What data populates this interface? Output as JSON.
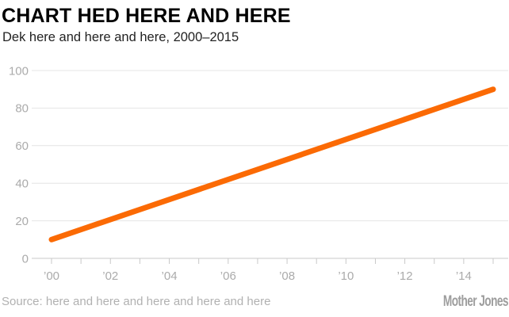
{
  "header": {
    "title": "CHART HED HERE AND HERE",
    "subtitle": "Dek here and here and here, 2000–2015"
  },
  "footer": {
    "source": "Source: here and here and here and here and here",
    "brand": "Mother Jones"
  },
  "colors": {
    "background": "#ffffff",
    "line": "#fb6a04",
    "grid": "#e4e4e4",
    "axis": "#c9c9c9",
    "tick_label": "#ababab",
    "title": "#000000",
    "subtitle": "#232323",
    "source": "#b1b1b1",
    "brand": "#9d9d9d"
  },
  "chart_data": {
    "type": "line",
    "title": "CHART HED HERE AND HERE",
    "subtitle": "Dek here and here and here, 2000–2015",
    "points": [
      [
        2000,
        10
      ],
      [
        2015,
        90
      ]
    ],
    "xlim": [
      2000,
      2015
    ],
    "ylim": [
      0,
      100
    ],
    "y_ticks": [
      0,
      20,
      40,
      60,
      80,
      100
    ],
    "x_minor_tick_years": [
      2000,
      2001,
      2002,
      2003,
      2004,
      2005,
      2006,
      2007,
      2008,
      2009,
      2010,
      2011,
      2012,
      2013,
      2014,
      2015
    ],
    "x_labeled_ticks": [
      {
        "year": 2000,
        "label": "’00"
      },
      {
        "year": 2002,
        "label": "’02"
      },
      {
        "year": 2004,
        "label": "’04"
      },
      {
        "year": 2006,
        "label": "’06"
      },
      {
        "year": 2008,
        "label": "’08"
      },
      {
        "year": 2010,
        "label": "’10"
      },
      {
        "year": 2012,
        "label": "’12"
      },
      {
        "year": 2014,
        "label": "’14"
      }
    ],
    "grid": "horizontal",
    "legend": "none",
    "line_width": 7
  }
}
